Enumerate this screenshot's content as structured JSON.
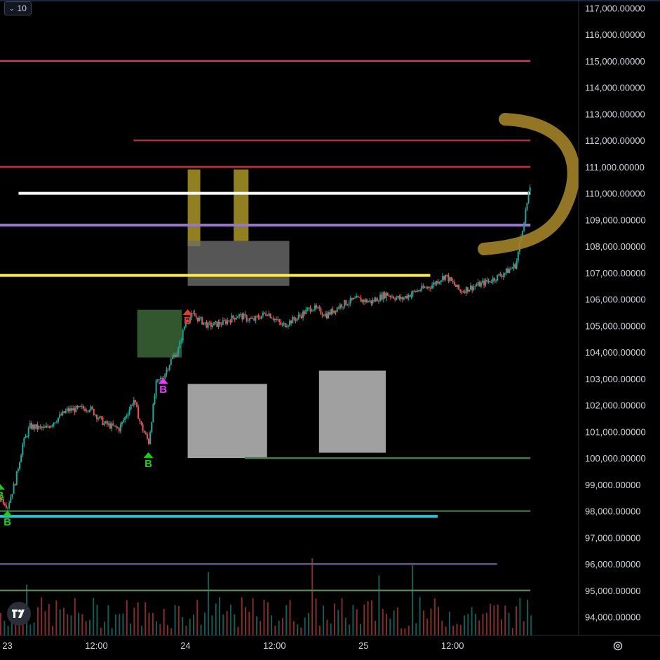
{
  "toolbar": {
    "interval_label": "10"
  },
  "colors": {
    "background": "#000000",
    "up_candle": "#26a69a",
    "down_candle": "#ef5350",
    "annotation": "#a08028",
    "white_level": "#ffffff",
    "purple_level": "#9575cd",
    "yellow_level": "#ffeb3b",
    "cyan_level": "#26c6da",
    "red_level": "#e53950"
  },
  "chart_data": {
    "type": "candlestick",
    "x_ticks": [
      "23",
      "12:00",
      "24",
      "12:00",
      "25",
      "12:00"
    ],
    "x_tick_times_h": [
      0,
      12,
      24,
      36,
      48,
      60
    ],
    "x_range_h": [
      -1,
      77
    ],
    "ylim": [
      93300,
      117300
    ],
    "y_ticks": [
      "117,000.00000",
      "116,000.00000",
      "115,000.00000",
      "114,000.00000",
      "113,000.00000",
      "112,000.00000",
      "111,000.00000",
      "110,000.00000",
      "109,000.00000",
      "108,000.00000",
      "107,000.00000",
      "106,000.00000",
      "105,000.00000",
      "104,000.00000",
      "103,000.00000",
      "102,000.00000",
      "101,000.00000",
      "100,000.00000",
      "99,000.00000",
      "98,000.00000",
      "97,000.00000",
      "96,000.00000",
      "95,000.00000",
      "94,000.00000"
    ],
    "y_tick_values": [
      117000,
      116000,
      115000,
      114000,
      113000,
      112000,
      111000,
      110000,
      109000,
      108000,
      107000,
      106000,
      105000,
      104000,
      103000,
      102000,
      101000,
      100000,
      99000,
      98000,
      97000,
      96000,
      95000,
      94000
    ],
    "price_path": {
      "t_h": [
        -1,
        0,
        1,
        2,
        3,
        5,
        8,
        11,
        13,
        15,
        17,
        18,
        19,
        20,
        21,
        22,
        23,
        24,
        25,
        27,
        29,
        31,
        33,
        35,
        37,
        39,
        41,
        43,
        45,
        47,
        49,
        51,
        53,
        55,
        57,
        59,
        61,
        63,
        65,
        67,
        68.5,
        70.5
      ],
      "price": [
        98500,
        98200,
        99100,
        100500,
        101200,
        101100,
        101800,
        101900,
        101300,
        101100,
        102200,
        101200,
        100600,
        102800,
        103100,
        103700,
        104100,
        105200,
        105400,
        105000,
        105100,
        105400,
        105200,
        105500,
        105000,
        105300,
        105700,
        105400,
        105800,
        106000,
        105900,
        106200,
        106000,
        106300,
        106500,
        106900,
        106300,
        106500,
        106700,
        107000,
        107300,
        110400
      ]
    },
    "volume_range_h": [
      -1,
      70.5
    ],
    "levels": [
      {
        "price": 115000,
        "from_h": -1,
        "to_h": 70.5,
        "color": "#c2435f"
      },
      {
        "price": 112000,
        "from_h": 17,
        "to_h": 70.5,
        "color": "#b03040"
      },
      {
        "price": 111000,
        "from_h": -1,
        "to_h": 70.5,
        "color": "#c0303c"
      },
      {
        "price": 110000,
        "from_h": 1.5,
        "to_h": 70.5,
        "color": "#ffffff"
      },
      {
        "price": 108800,
        "from_h": -1,
        "to_h": 70.5,
        "color": "#9575cd"
      },
      {
        "price": 106900,
        "from_h": -1,
        "to_h": 57,
        "color": "#ffeb3b"
      },
      {
        "price": 100000,
        "from_h": 32,
        "to_h": 70.5,
        "color": "#4a7a50"
      },
      {
        "price": 98000,
        "from_h": -1,
        "to_h": 70.5,
        "color": "#3d6b3f"
      },
      {
        "price": 97800,
        "from_h": -1,
        "to_h": 58,
        "color": "#26c6da"
      },
      {
        "price": 96000,
        "from_h": -1,
        "to_h": 66,
        "color": "#5c5c8a"
      },
      {
        "price": 95000,
        "from_h": -1,
        "to_h": 70.5,
        "color": "#5e7e60"
      }
    ],
    "shaded_bands": [
      {
        "from_h": 24.3,
        "to_h": 26,
        "low": 108000,
        "high": 110900,
        "color": "#b5a02a"
      },
      {
        "from_h": 30.5,
        "to_h": 32.5,
        "low": 108200,
        "high": 110900,
        "color": "#b5a02a"
      },
      {
        "from_h": 24.3,
        "to_h": 38,
        "low": 106500,
        "high": 108200,
        "color": "#6b6b6b"
      },
      {
        "from_h": 24.3,
        "to_h": 35,
        "low": 100000,
        "high": 102800,
        "color": "#c8c8c8"
      },
      {
        "from_h": 42,
        "to_h": 51,
        "low": 100200,
        "high": 103300,
        "color": "#c8c8c8"
      },
      {
        "from_h": 17.5,
        "to_h": 23.5,
        "low": 103800,
        "high": 105600,
        "color": "#3e6b3a"
      }
    ],
    "signal_markers": [
      {
        "t_h": -1,
        "price": 98700,
        "label": "B",
        "color": "#19d11a"
      },
      {
        "t_h": 0,
        "price": 97700,
        "label": "B",
        "color": "#19d11a"
      },
      {
        "t_h": 19,
        "price": 99900,
        "label": "B",
        "color": "#19d11a"
      },
      {
        "t_h": 24.3,
        "price": 105300,
        "label": "B",
        "color": "#e53935"
      },
      {
        "t_h": 21,
        "price": 102700,
        "label": "B",
        "color": "#e040fb"
      }
    ]
  }
}
